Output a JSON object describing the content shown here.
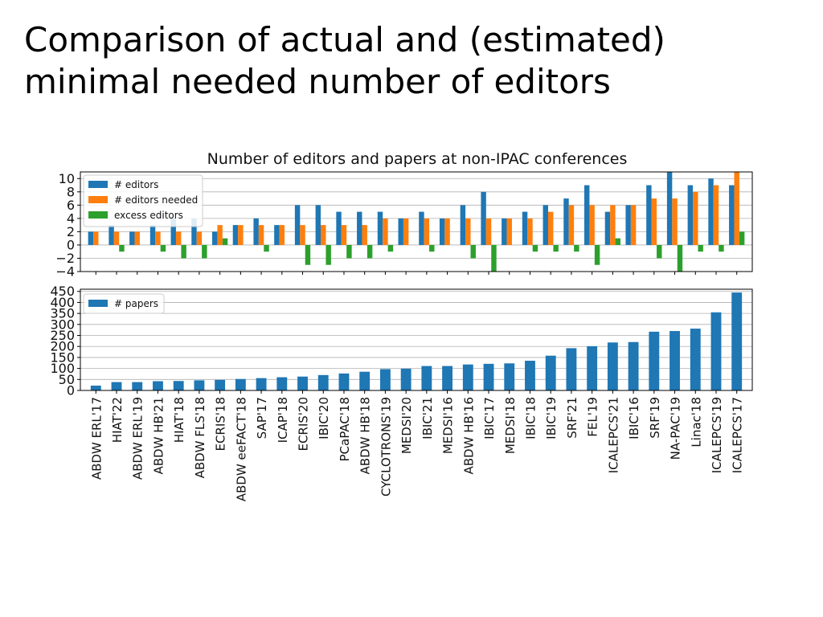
{
  "slide": {
    "title_line1": "Comparison of actual and (estimated)",
    "title_line2": "minimal needed number of editors"
  },
  "colors": {
    "editors": "#1f77b4",
    "editors_needed": "#ff7f0e",
    "excess_editors": "#2ca02c",
    "papers": "#1f77b4"
  },
  "chart_data": [
    {
      "type": "bar",
      "title": "Number of editors and papers at non-IPAC conferences",
      "legend_position": "top-left",
      "grid": true,
      "ylim": [
        -4,
        11
      ],
      "yticks": [
        -4,
        -2,
        0,
        2,
        4,
        6,
        8,
        10
      ],
      "categories": [
        "ABDW ERL'17",
        "HIAT'22",
        "ABDW ERL'19",
        "ABDW HB'21",
        "HIAT'18",
        "ABDW FLS'18",
        "ECRIS'18",
        "ABDW eeFACT'18",
        "SAP'17",
        "ICAP'18",
        "ECRIS'20",
        "IBIC'20",
        "PCaPAC'18",
        "ABDW HB'18",
        "CYCLOTRONS'19",
        "MEDSI'20",
        "IBIC'21",
        "MEDSI'16",
        "ABDW HB'16",
        "IBIC'17",
        "MEDSI'18",
        "IBIC'18",
        "IBIC'19",
        "SRF'21",
        "FEL'19",
        "ICALEPCS'21",
        "IBIC'16",
        "SRF'19",
        "NA-PAC'19",
        "Linac'18",
        "ICALEPCS'19",
        "ICALEPCS'17"
      ],
      "series": [
        {
          "name": "# editors",
          "values": [
            2,
            3,
            2,
            3,
            4,
            4,
            2,
            3,
            4,
            3,
            6,
            6,
            5,
            5,
            5,
            4,
            5,
            4,
            6,
            8,
            4,
            5,
            6,
            7,
            9,
            5,
            6,
            9,
            11,
            9,
            10,
            9
          ]
        },
        {
          "name": "# editors needed",
          "values": [
            2,
            2,
            2,
            2,
            2,
            2,
            3,
            3,
            3,
            3,
            3,
            3,
            3,
            3,
            4,
            4,
            4,
            4,
            4,
            4,
            4,
            4,
            5,
            6,
            6,
            6,
            6,
            7,
            7,
            8,
            9,
            11
          ]
        },
        {
          "name": "excess editors",
          "values": [
            0,
            -1,
            0,
            -1,
            -2,
            -2,
            1,
            0,
            -1,
            0,
            -3,
            -3,
            -2,
            -2,
            -1,
            0,
            -1,
            0,
            -2,
            -4,
            0,
            -1,
            -1,
            -1,
            -3,
            1,
            0,
            -2,
            -4,
            -1,
            -1,
            2
          ]
        }
      ]
    },
    {
      "type": "bar",
      "legend_position": "top-left",
      "grid": true,
      "ylim": [
        0,
        460
      ],
      "yticks": [
        0,
        50,
        100,
        150,
        200,
        250,
        300,
        350,
        400,
        450
      ],
      "categories": [
        "ABDW ERL'17",
        "HIAT'22",
        "ABDW ERL'19",
        "ABDW HB'21",
        "HIAT'18",
        "ABDW FLS'18",
        "ECRIS'18",
        "ABDW eeFACT'18",
        "SAP'17",
        "ICAP'18",
        "ECRIS'20",
        "IBIC'20",
        "PCaPAC'18",
        "ABDW HB'18",
        "CYCLOTRONS'19",
        "MEDSI'20",
        "IBIC'21",
        "MEDSI'16",
        "ABDW HB'16",
        "IBIC'17",
        "MEDSI'18",
        "IBIC'18",
        "IBIC'19",
        "SRF'21",
        "FEL'19",
        "ICALEPCS'21",
        "IBIC'16",
        "SRF'19",
        "NA-PAC'19",
        "Linac'18",
        "ICALEPCS'19",
        "ICALEPCS'17"
      ],
      "series": [
        {
          "name": "# papers",
          "values": [
            22,
            38,
            38,
            42,
            43,
            46,
            48,
            52,
            56,
            60,
            63,
            70,
            77,
            85,
            97,
            99,
            111,
            111,
            118,
            121,
            123,
            135,
            158,
            192,
            201,
            218,
            220,
            267,
            270,
            281,
            355,
            445
          ]
        }
      ]
    }
  ]
}
